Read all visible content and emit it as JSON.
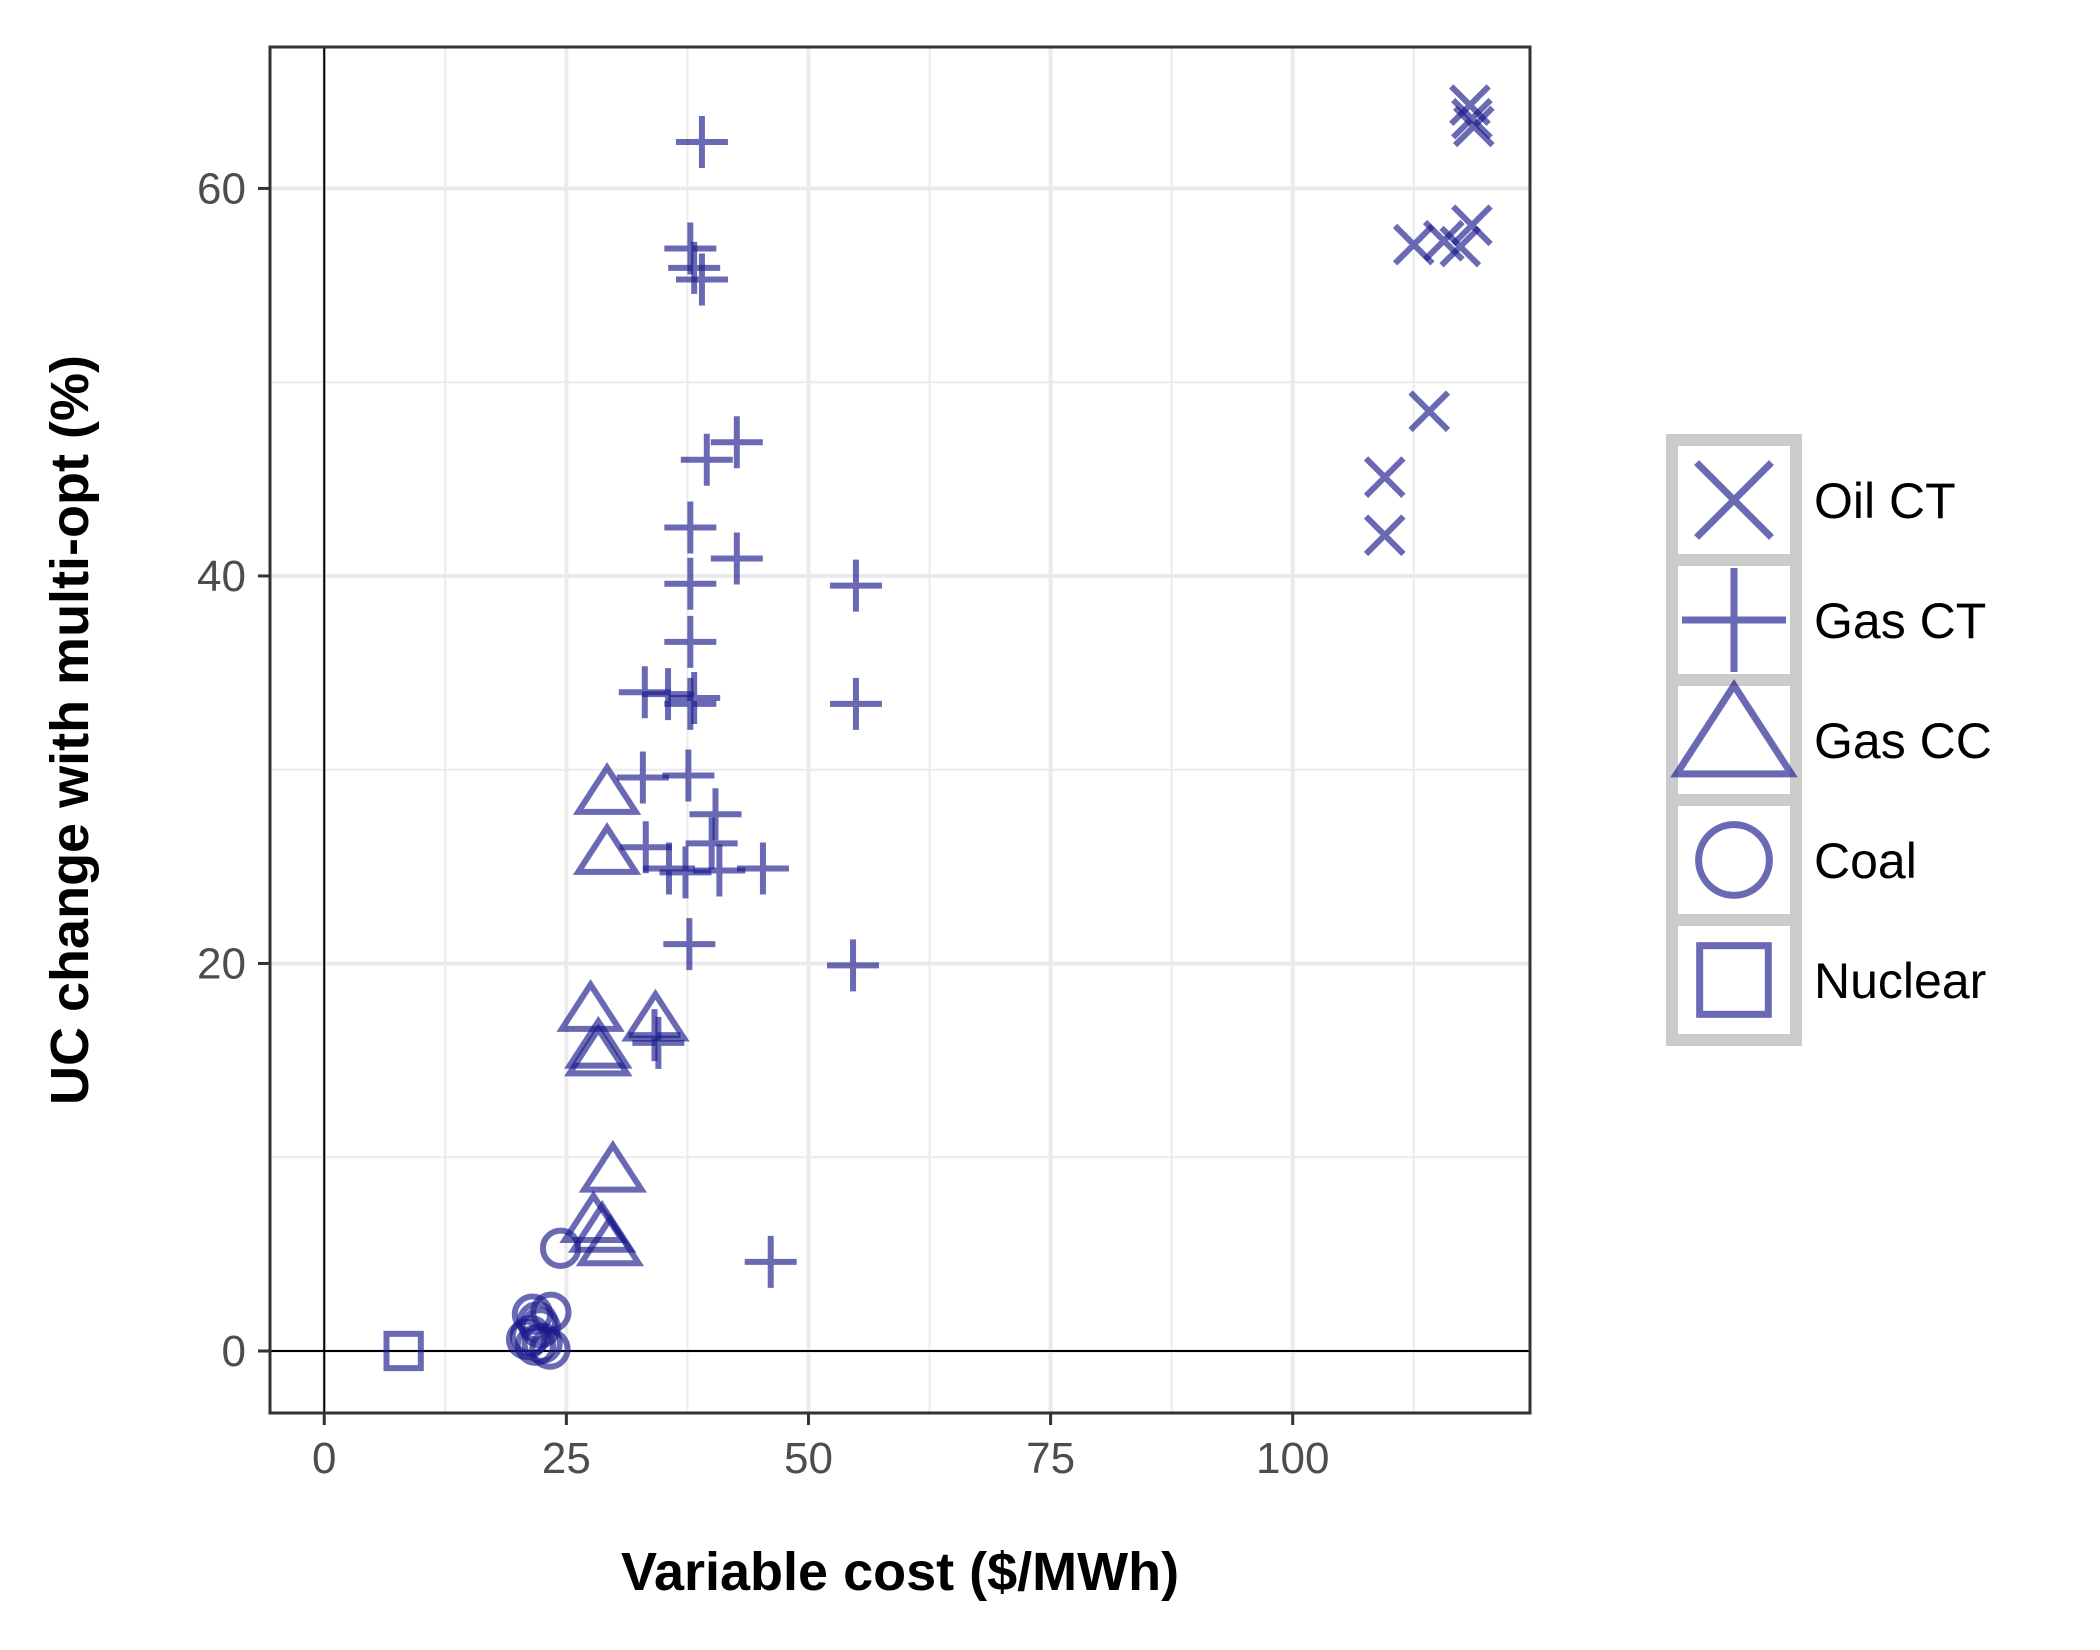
{
  "chart_data": {
    "type": "scatter",
    "title": "",
    "xlabel": "Variable cost ($/MWh)",
    "ylabel": "UC change with multi-opt (%)",
    "xlim": [
      -5.6,
      124.5
    ],
    "ylim": [
      -3.2,
      67.3
    ],
    "x_ticks": [
      0,
      25,
      50,
      75,
      100
    ],
    "x_tick_labels": [
      "0",
      "25",
      "50",
      "75",
      "100"
    ],
    "y_ticks": [
      0,
      20,
      40,
      60
    ],
    "y_tick_labels": [
      "0",
      "20",
      "40",
      "60"
    ],
    "grid": true,
    "reference_lines": {
      "x": 0,
      "y": 0
    },
    "legend_position": "right",
    "marker_color": "#1a1a8c",
    "marker_opacity": 0.65,
    "panel_background": "#ffffff",
    "grid_color": "#ebebeb",
    "series": [
      {
        "name": "Oil CT",
        "marker": "x",
        "points": [
          [
            118.3,
            64.3
          ],
          [
            118.5,
            63.6
          ],
          [
            118.7,
            63.2
          ],
          [
            112.5,
            57.1
          ],
          [
            115.6,
            57.3
          ],
          [
            117.3,
            57.0
          ],
          [
            118.5,
            58.1
          ],
          [
            114.1,
            48.5
          ],
          [
            109.5,
            45.1
          ],
          [
            109.5,
            42.1
          ]
        ]
      },
      {
        "name": "Gas CT",
        "marker": "plus",
        "points": [
          [
            39.0,
            62.4
          ],
          [
            37.8,
            56.9
          ],
          [
            38.2,
            55.9
          ],
          [
            39.0,
            55.3
          ],
          [
            39.5,
            46.0
          ],
          [
            42.6,
            46.9
          ],
          [
            37.8,
            42.5
          ],
          [
            42.6,
            40.9
          ],
          [
            37.8,
            39.6
          ],
          [
            54.9,
            39.5
          ],
          [
            37.8,
            36.6
          ],
          [
            33.1,
            34.0
          ],
          [
            35.5,
            33.9
          ],
          [
            37.8,
            33.4
          ],
          [
            38.2,
            33.7
          ],
          [
            54.9,
            33.4
          ],
          [
            32.9,
            29.6
          ],
          [
            37.6,
            29.7
          ],
          [
            40.4,
            27.7
          ],
          [
            33.2,
            26.0
          ],
          [
            40.0,
            26.2
          ],
          [
            35.6,
            24.9
          ],
          [
            37.3,
            24.7
          ],
          [
            40.8,
            24.8
          ],
          [
            45.3,
            24.9
          ],
          [
            37.7,
            21.0
          ],
          [
            54.6,
            19.9
          ],
          [
            34.1,
            16.3
          ],
          [
            34.5,
            15.9
          ],
          [
            46.1,
            4.6
          ]
        ]
      },
      {
        "name": "Gas CC",
        "marker": "triangle",
        "points": [
          [
            29.2,
            28.7
          ],
          [
            29.2,
            25.6
          ],
          [
            27.5,
            17.5
          ],
          [
            34.2,
            17.0
          ],
          [
            28.3,
            15.6
          ],
          [
            28.3,
            15.2
          ],
          [
            29.8,
            9.2
          ],
          [
            27.8,
            6.6
          ],
          [
            28.7,
            6.1
          ],
          [
            29.5,
            5.4
          ]
        ]
      },
      {
        "name": "Coal",
        "marker": "circle",
        "points": [
          [
            24.4,
            5.3
          ],
          [
            21.5,
            1.9
          ],
          [
            22.0,
            1.5
          ],
          [
            23.4,
            2.0
          ],
          [
            22.3,
            1.2
          ],
          [
            20.9,
            0.6
          ],
          [
            21.3,
            0.8
          ],
          [
            22.5,
            0.4
          ],
          [
            21.8,
            0.3
          ],
          [
            23.3,
            0.1
          ]
        ]
      },
      {
        "name": "Nuclear",
        "marker": "square",
        "points": [
          [
            8.2,
            0.0
          ]
        ]
      }
    ]
  }
}
